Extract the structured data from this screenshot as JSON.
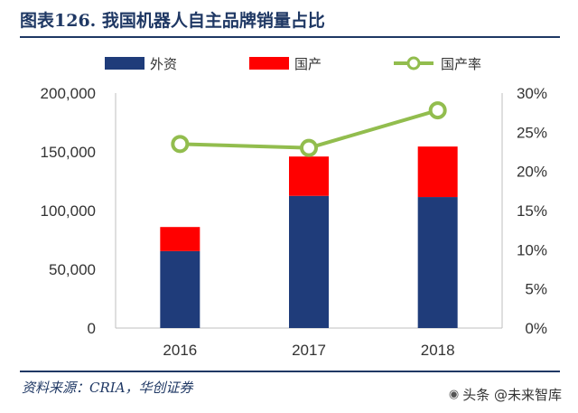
{
  "header": {
    "title": "图表126. 我国机器人自主品牌销量占比"
  },
  "footer": {
    "source": "资料来源：CRIA，华创证券",
    "watermark": "头条 @未来智库",
    "watermark_icon": "camera-icon"
  },
  "colors": {
    "foreign": "#1f3c7a",
    "domestic": "#ff0000",
    "ratio": "#92bd4e",
    "title": "#1f3864"
  },
  "chart_data": {
    "type": "bar",
    "stacked": true,
    "categories": [
      "2016",
      "2017",
      "2018"
    ],
    "series": [
      {
        "name": "外资",
        "type": "bar",
        "axis": "left",
        "values": [
          65500,
          112500,
          111500
        ]
      },
      {
        "name": "国产",
        "type": "bar",
        "axis": "left",
        "values": [
          20500,
          33500,
          43000
        ]
      },
      {
        "name": "国产率",
        "type": "line",
        "axis": "right",
        "values": [
          23.5,
          23.0,
          27.8
        ]
      }
    ],
    "ylim": [
      0,
      200000
    ],
    "y_ticks": [
      "0",
      "50,000",
      "100,000",
      "150,000",
      "200,000"
    ],
    "y2lim": [
      0,
      30
    ],
    "y2_ticks": [
      "0%",
      "5%",
      "10%",
      "15%",
      "20%",
      "25%",
      "30%"
    ],
    "legend": "top",
    "grid": false
  }
}
